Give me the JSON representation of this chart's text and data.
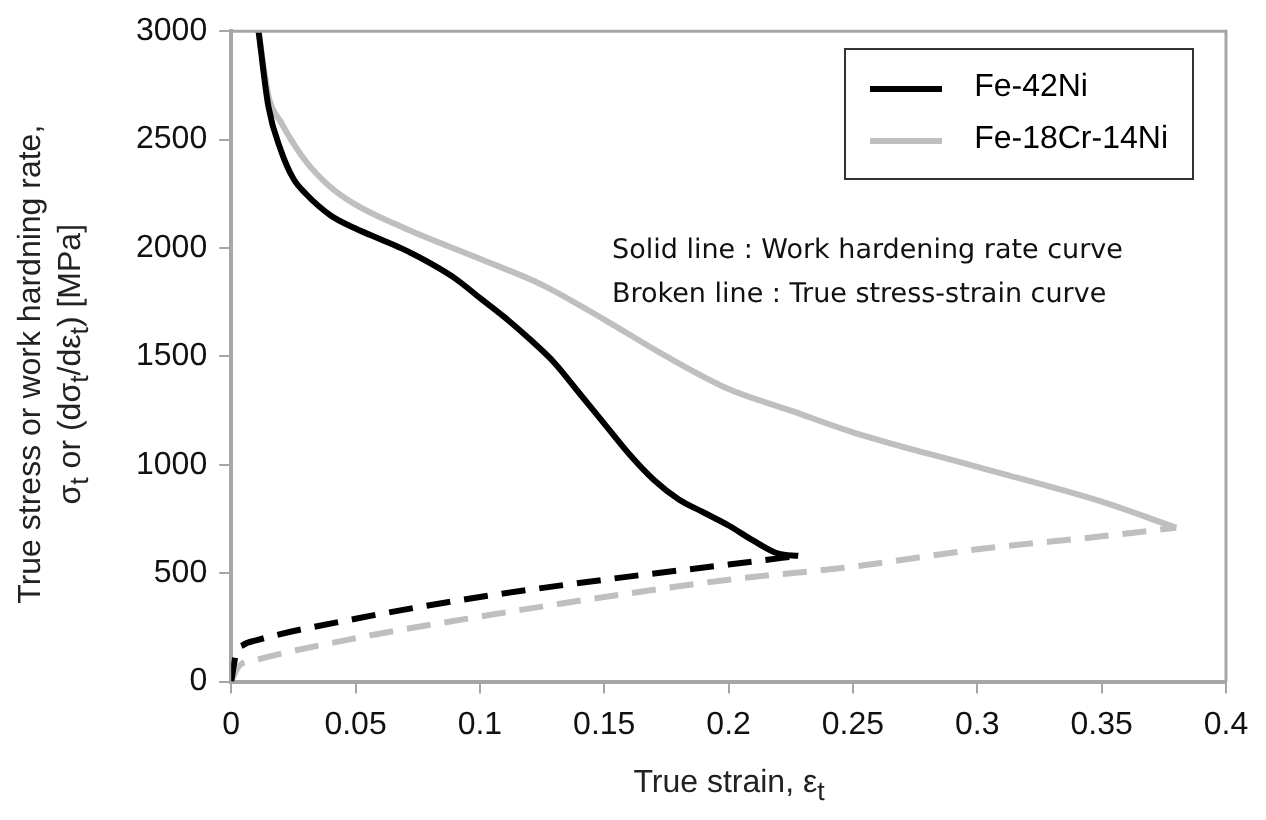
{
  "chart_data": {
    "type": "line",
    "xlabel": "True strain, ε$_{t}$",
    "ylabel": "True stress or work hardning rate,\nσ$_{t}$ or (dσ$_{t}$/dε$_{t}$) [MPa]",
    "xlim": [
      0,
      0.4
    ],
    "xticks": [
      0,
      0.05,
      0.1,
      0.15,
      0.2,
      0.25,
      0.3,
      0.35,
      0.4
    ],
    "ylim": [
      0,
      3000
    ],
    "yticks": [
      0,
      500,
      1000,
      1500,
      2000,
      2500,
      3000
    ],
    "grid": false,
    "legend": "top right",
    "marker": "none",
    "annotations": [
      "Solid line : Work hardening rate curve",
      "Broken line : True stress-strain curve"
    ],
    "series": [
      {
        "name": "Fe-42Ni",
        "color": "#000000",
        "line_style": "solid",
        "x": [
          0.011,
          0.015,
          0.02,
          0.025,
          0.03,
          0.04,
          0.05,
          0.06,
          0.07,
          0.08,
          0.09,
          0.1,
          0.11,
          0.12,
          0.13,
          0.14,
          0.15,
          0.16,
          0.17,
          0.18,
          0.19,
          0.2,
          0.21,
          0.22,
          0.228
        ],
        "values": [
          3000,
          2650,
          2450,
          2320,
          2250,
          2150,
          2090,
          2040,
          1990,
          1930,
          1860,
          1770,
          1680,
          1580,
          1470,
          1330,
          1190,
          1050,
          930,
          840,
          780,
          720,
          650,
          590,
          580
        ]
      },
      {
        "name": "Fe-18Cr-14Ni",
        "color": "#bfbfbf",
        "line_style": "solid",
        "x": [
          0.011,
          0.015,
          0.02,
          0.03,
          0.04,
          0.05,
          0.07,
          0.1,
          0.125,
          0.15,
          0.175,
          0.2,
          0.225,
          0.25,
          0.3,
          0.35,
          0.38
        ],
        "values": [
          3000,
          2700,
          2580,
          2400,
          2280,
          2200,
          2090,
          1950,
          1830,
          1670,
          1500,
          1350,
          1250,
          1150,
          990,
          830,
          710
        ]
      },
      {
        "color": "#000000",
        "line_style": "dashed",
        "x": [
          0,
          0.002,
          0.005,
          0.01,
          0.05,
          0.1,
          0.15,
          0.2,
          0.228
        ],
        "values": [
          0,
          130,
          170,
          190,
          290,
          390,
          470,
          540,
          580
        ]
      },
      {
        "color": "#bfbfbf",
        "line_style": "dashed",
        "x": [
          0,
          0.003,
          0.01,
          0.05,
          0.1,
          0.15,
          0.2,
          0.25,
          0.3,
          0.35,
          0.38
        ],
        "values": [
          0,
          70,
          100,
          200,
          300,
          390,
          470,
          530,
          610,
          670,
          710
        ]
      }
    ]
  }
}
